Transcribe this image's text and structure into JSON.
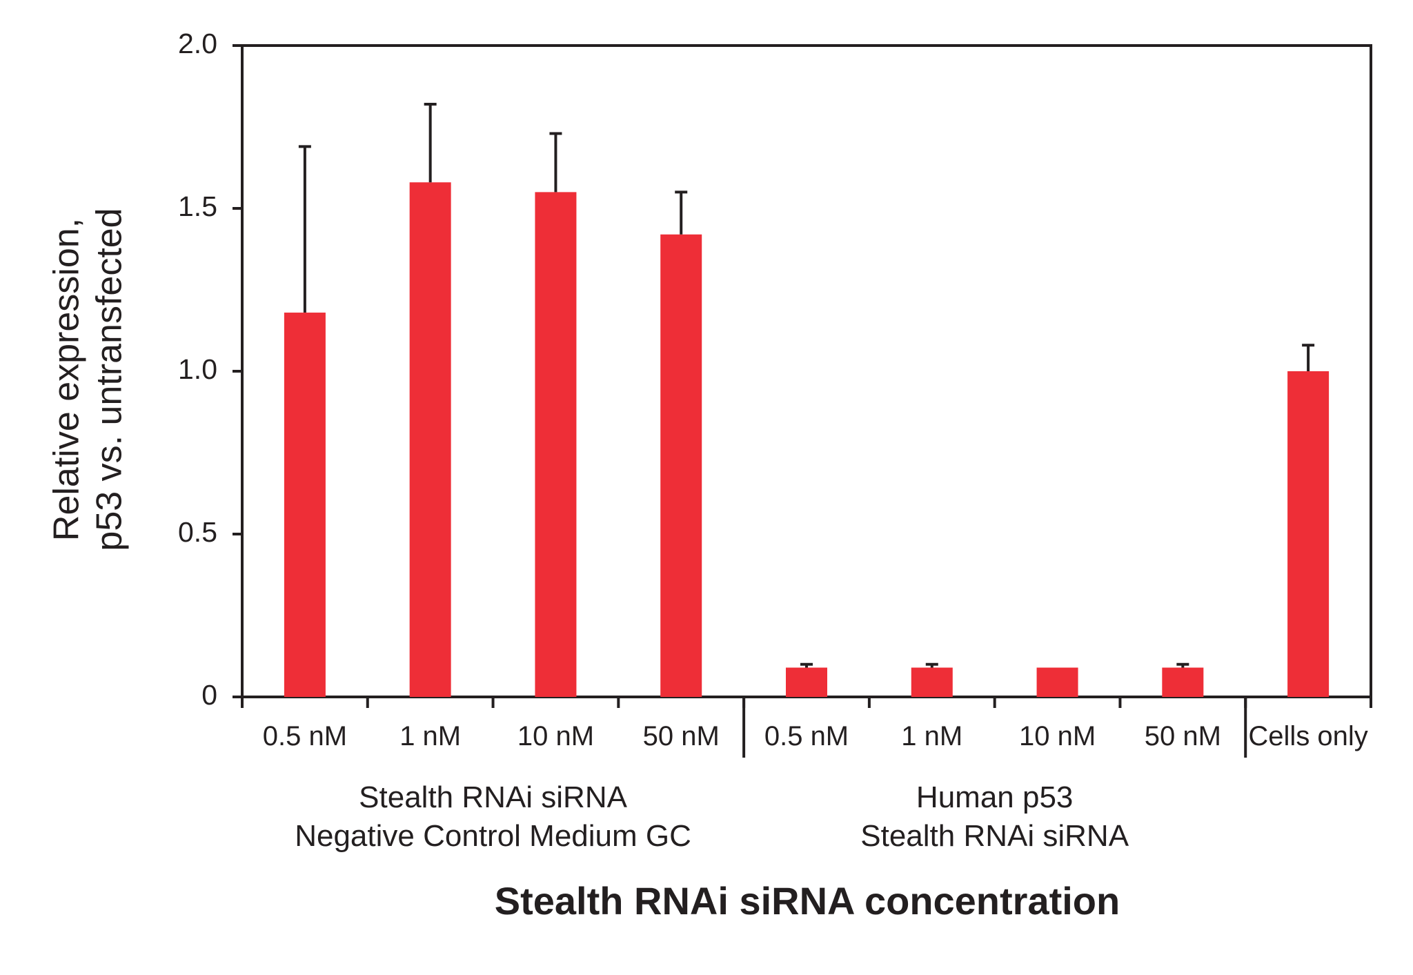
{
  "chart_data": {
    "type": "bar",
    "ylabel": [
      "Relative expression,",
      "p53 vs. untransfected"
    ],
    "xlabel": "Stealth RNAi siRNA concentration",
    "ylim": [
      0,
      2.0
    ],
    "yticks": [
      {
        "value": 0,
        "label": "0"
      },
      {
        "value": 0.5,
        "label": "0.5"
      },
      {
        "value": 1.0,
        "label": "1.0"
      },
      {
        "value": 1.5,
        "label": "1.5"
      },
      {
        "value": 2.0,
        "label": "2.0"
      }
    ],
    "categories": [
      "0.5 nM",
      "1 nM",
      "10 nM",
      "50 nM",
      "0.5 nM",
      "1 nM",
      "10 nM",
      "50 nM",
      "Cells only"
    ],
    "values": [
      1.18,
      1.58,
      1.55,
      1.42,
      0.09,
      0.09,
      0.09,
      0.09,
      1.0
    ],
    "error_upper": [
      1.69,
      1.82,
      1.73,
      1.55,
      0.1,
      0.1,
      0.09,
      0.1,
      1.08
    ],
    "groups": [
      {
        "lines": [
          "Stealth RNAi siRNA",
          "Negative Control Medium GC"
        ],
        "categories": [
          0,
          1,
          2,
          3
        ]
      },
      {
        "lines": [
          "Human p53",
          "Stealth RNAi siRNA"
        ],
        "categories": [
          4,
          5,
          6,
          7
        ]
      }
    ],
    "bar_color": "#ee2e37",
    "axis_color": "#231f20",
    "grid": false,
    "legend": "none"
  }
}
